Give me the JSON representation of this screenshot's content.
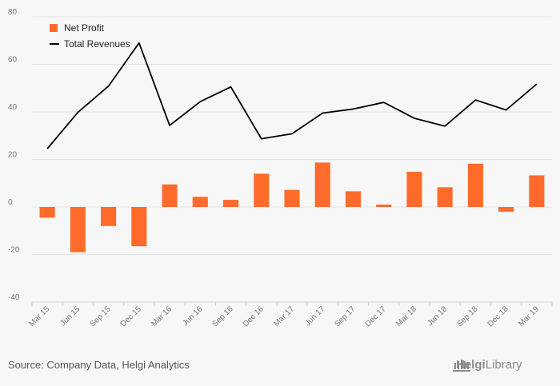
{
  "colors": {
    "background": "#f7f7f7",
    "bar": "#ff6b2b",
    "line": "#000000",
    "grid": "#e3e3e3",
    "tick_text": "#777777"
  },
  "source": "Source: Company Data, Helgi Analytics",
  "brand": {
    "prefix": "Helgi",
    "suffix": "Library",
    "icon": "library-logo-icon"
  },
  "chart_data": {
    "type": "bar",
    "title": "",
    "xlabel": "",
    "ylabel": "",
    "ylim": [
      -40,
      80
    ],
    "yticks": [
      -40,
      -20,
      0,
      20,
      40,
      60,
      80
    ],
    "grid": true,
    "legend_position": "top-left",
    "categories": [
      "Mar 15",
      "Jun 15",
      "Sep 15",
      "Dec 15",
      "Mar 16",
      "Jun 16",
      "Sep 16",
      "Dec 16",
      "Mar 17",
      "Jun 17",
      "Sep 17",
      "Dec 17",
      "Mar 18",
      "Jun 18",
      "Sep 18",
      "Dec 18",
      "Mar 19"
    ],
    "series": [
      {
        "name": "Net Profit",
        "type": "bar",
        "values": [
          -4.5,
          -19,
          -8,
          -16.5,
          9.5,
          4.3,
          3,
          14,
          7.2,
          18.7,
          6.6,
          1,
          14.8,
          8.3,
          18.2,
          -2,
          13.3
        ]
      },
      {
        "name": "Total Revenues",
        "type": "line",
        "values": [
          24.5,
          39.8,
          50.8,
          69,
          34.3,
          44.3,
          50.5,
          28.7,
          30.8,
          39.5,
          41.2,
          44,
          37.3,
          34,
          45,
          40.8,
          51.7
        ]
      }
    ]
  }
}
